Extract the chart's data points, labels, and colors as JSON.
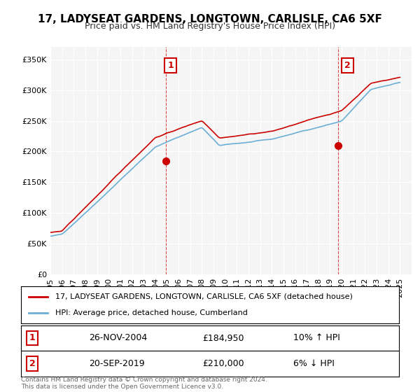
{
  "title": "17, LADYSEAT GARDENS, LONGTOWN, CARLISLE, CA6 5XF",
  "subtitle": "Price paid vs. HM Land Registry's House Price Index (HPI)",
  "red_label": "17, LADYSEAT GARDENS, LONGTOWN, CARLISLE, CA6 5XF (detached house)",
  "blue_label": "HPI: Average price, detached house, Cumberland",
  "annotation1": {
    "num": "1",
    "date": "26-NOV-2004",
    "price": "£184,950",
    "pct": "10% ↑ HPI"
  },
  "annotation2": {
    "num": "2",
    "date": "20-SEP-2019",
    "price": "£210,000",
    "pct": "6% ↓ HPI"
  },
  "footer": "Contains HM Land Registry data © Crown copyright and database right 2024.\nThis data is licensed under the Open Government Licence v3.0.",
  "ylim": [
    0,
    370000
  ],
  "yticks": [
    0,
    50000,
    100000,
    150000,
    200000,
    250000,
    300000,
    350000
  ],
  "background_color": "#f5f5f5",
  "plot_bg": "#f5f5f5"
}
